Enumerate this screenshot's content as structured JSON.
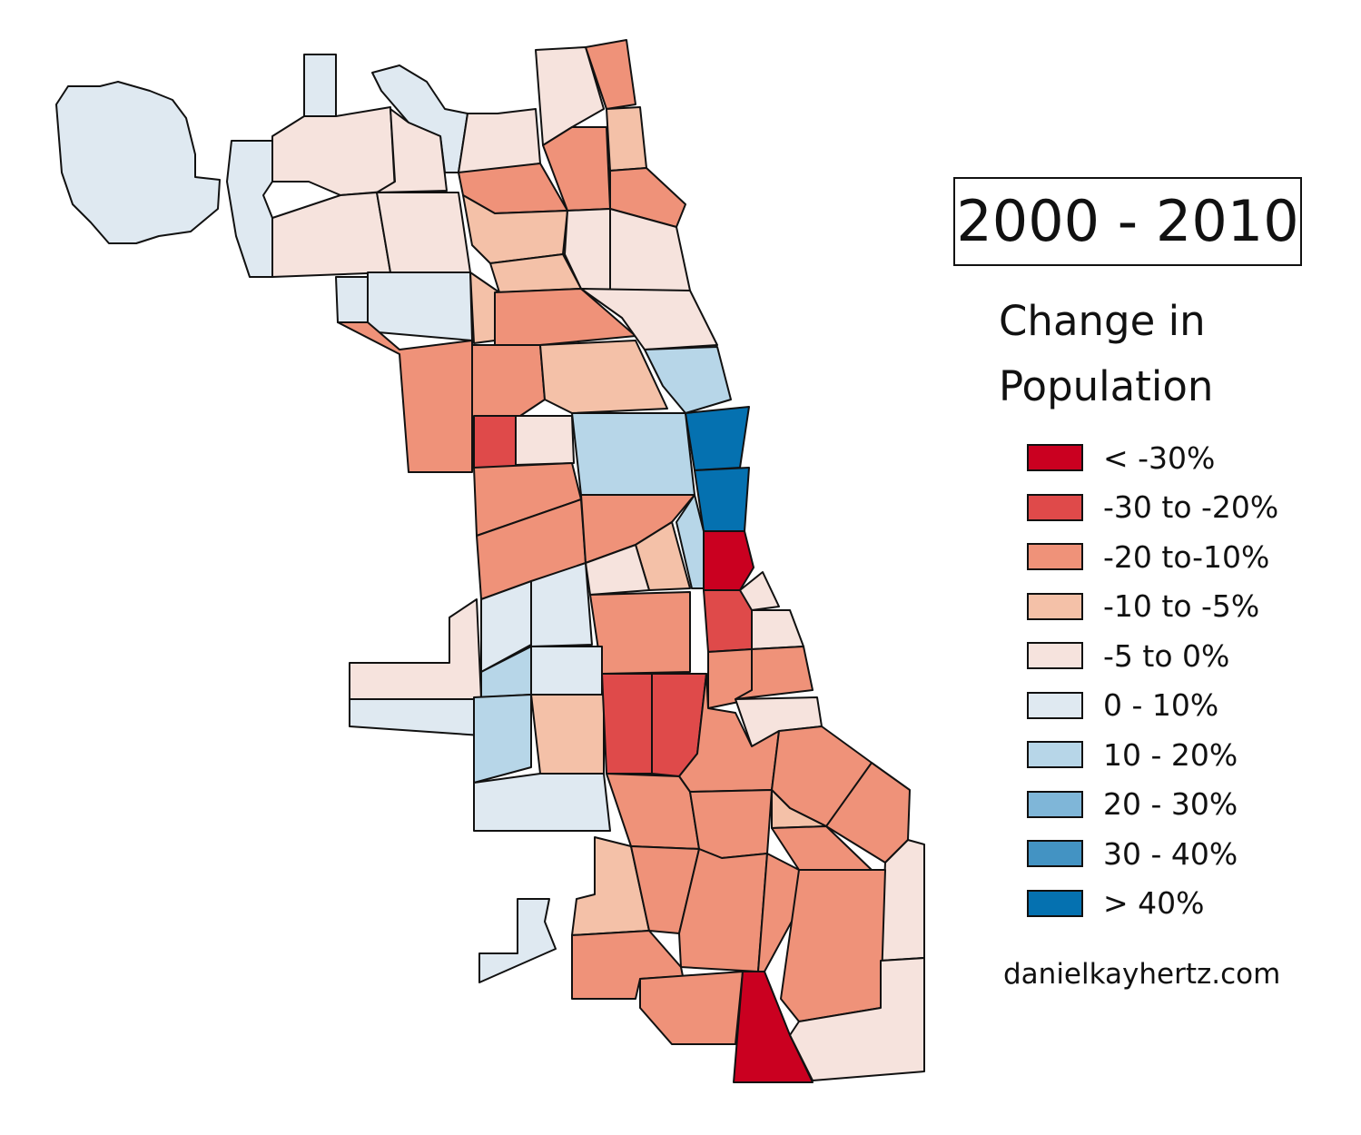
{
  "title": "2000 - 2010",
  "subtitle_lines": [
    "Change in",
    "Population"
  ],
  "legend": [
    {
      "label": "< -30%",
      "color": "#ca0020"
    },
    {
      "label": "-30 to -20%",
      "color": "#df4a4a"
    },
    {
      "label": "-20 to-10%",
      "color": "#ef9279"
    },
    {
      "label": "-10 to -5%",
      "color": "#f4c1a8"
    },
    {
      "label": "-5 to 0%",
      "color": "#f6e3dd"
    },
    {
      "label": "0 - 10%",
      "color": "#dfe9f1"
    },
    {
      "label": "10 - 20%",
      "color": "#b7d6e8"
    },
    {
      "label": "20 - 30%",
      "color": "#7fb6d8"
    },
    {
      "label": "30 - 40%",
      "color": "#4393c3"
    },
    {
      "label": "> 40%",
      "color": "#0571b0"
    }
  ],
  "credit": "danielkayhertz.com"
}
